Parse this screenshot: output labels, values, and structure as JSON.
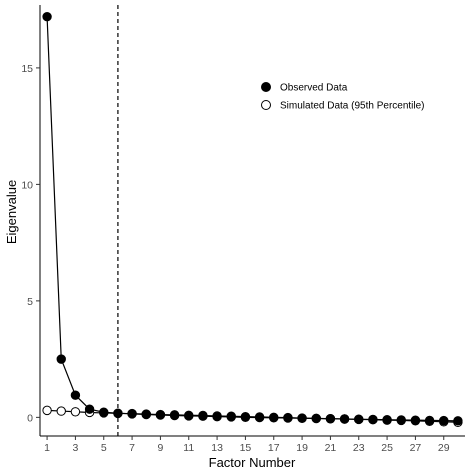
{
  "chart_data": {
    "type": "line",
    "title": "",
    "xlabel": "Factor Number",
    "ylabel": "Eigenvalue",
    "xlim": [
      0.5,
      30.5
    ],
    "ylim": [
      -0.8,
      17.7
    ],
    "x_ticks": [
      1,
      3,
      5,
      7,
      9,
      11,
      13,
      15,
      17,
      19,
      21,
      23,
      25,
      27,
      29
    ],
    "y_ticks": [
      0,
      5,
      10,
      15
    ],
    "grid": false,
    "legend_position": "top-right",
    "reference_line": {
      "x": 6,
      "style": "dashed"
    },
    "x": [
      1,
      2,
      3,
      4,
      5,
      6,
      7,
      8,
      9,
      10,
      11,
      12,
      13,
      14,
      15,
      16,
      17,
      18,
      19,
      20,
      21,
      22,
      23,
      24,
      25,
      26,
      27,
      28,
      29,
      30
    ],
    "series": [
      {
        "name": "Observed Data",
        "marker": "filled-circle",
        "values": [
          17.2,
          2.5,
          0.95,
          0.35,
          0.22,
          0.18,
          0.15,
          0.12,
          0.1,
          0.08,
          0.06,
          0.05,
          0.03,
          0.02,
          0.0,
          -0.01,
          -0.02,
          -0.03,
          -0.04,
          -0.05,
          -0.06,
          -0.07,
          -0.08,
          -0.09,
          -0.1,
          -0.11,
          -0.12,
          -0.13,
          -0.14,
          -0.15
        ]
      },
      {
        "name": "Simulated Data (95th Percentile)",
        "marker": "open-circle",
        "values": [
          0.3,
          0.27,
          0.24,
          0.21,
          0.19,
          0.17,
          0.16,
          0.14,
          0.12,
          0.11,
          0.09,
          0.08,
          0.06,
          0.05,
          0.03,
          0.02,
          0.0,
          -0.01,
          -0.03,
          -0.04,
          -0.06,
          -0.07,
          -0.09,
          -0.1,
          -0.12,
          -0.13,
          -0.15,
          -0.17,
          -0.19,
          -0.21
        ]
      }
    ]
  }
}
